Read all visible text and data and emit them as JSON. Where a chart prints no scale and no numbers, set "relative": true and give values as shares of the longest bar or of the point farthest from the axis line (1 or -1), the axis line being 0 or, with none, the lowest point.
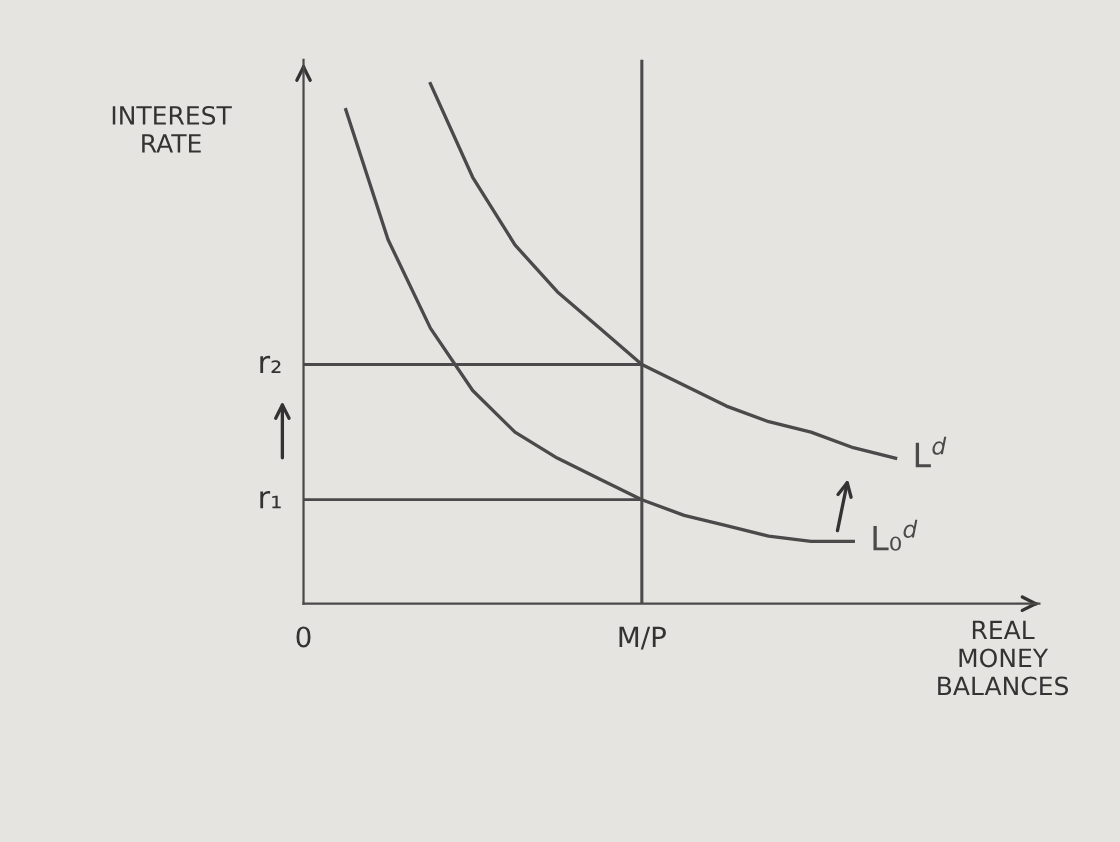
{
  "chart_data": {
    "type": "line",
    "relative": true,
    "xlabel": "REAL\nMONEY\nBALANCES",
    "ylabel": "INTEREST\nRATE",
    "categories": [
      "0",
      null,
      null,
      null,
      null,
      null,
      null,
      null,
      "M/P",
      null,
      null,
      null,
      null,
      null,
      null
    ],
    "series": [
      {
        "name": "L$^{d}$",
        "color": "#4a4a4a",
        "values": [
          null,
          null,
          null,
          1.0,
          0.82,
          0.69,
          0.6,
          0.53,
          0.46,
          0.42,
          0.38,
          0.35,
          0.33,
          0.3,
          0.28
        ]
      },
      {
        "name": "L₀$^{d}$",
        "color": "#4a4a4a",
        "values": [
          null,
          0.95,
          0.7,
          0.53,
          0.41,
          0.33,
          0.28,
          0.24,
          0.2,
          0.17,
          0.15,
          0.13,
          0.12,
          0.12,
          null
        ]
      }
    ],
    "ref_lines": [
      {
        "axis": "x",
        "value": "M/P",
        "color": "#4a4a4a"
      },
      {
        "axis": "y",
        "value": 0.46,
        "label": "r₂",
        "color": "#4a4a4a"
      },
      {
        "axis": "y",
        "value": 0.2,
        "label": "r₁",
        "color": "#4a4a4a"
      }
    ],
    "legend": false,
    "grid": false,
    "marker": "none",
    "line_style": "solid"
  }
}
